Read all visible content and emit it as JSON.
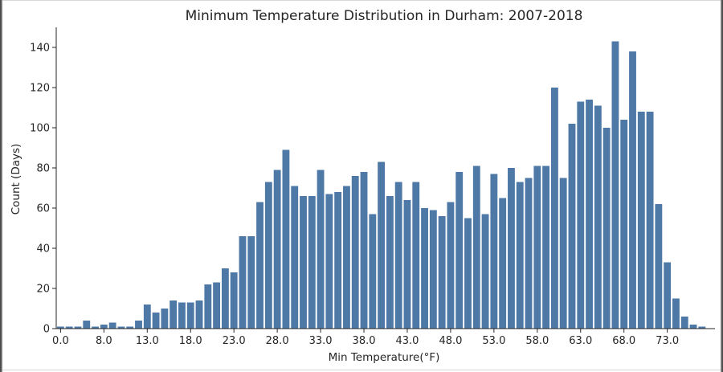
{
  "chart_data": {
    "type": "bar",
    "title": "Minimum Temperature Distribution in Durham: 2007-2018",
    "xlabel": "Min Temperature(°F)",
    "ylabel": "Count (Days)",
    "bar_color": "#4e79a7",
    "ylim": [
      0,
      150
    ],
    "yticks": [
      0,
      20,
      40,
      60,
      80,
      100,
      120,
      140
    ],
    "xtick_labels": [
      "0.0",
      "8.0",
      "13.0",
      "18.0",
      "23.0",
      "28.0",
      "33.0",
      "38.0",
      "43.0",
      "48.0",
      "53.0",
      "58.0",
      "63.0",
      "68.0",
      "73.0"
    ],
    "xtick_positions": [
      0,
      5,
      10,
      15,
      20,
      25,
      30,
      35,
      40,
      45,
      50,
      55,
      60,
      65,
      70
    ],
    "categories": [
      0,
      1,
      2,
      3,
      4,
      5,
      6,
      7,
      8,
      9,
      10,
      11,
      12,
      13,
      14,
      15,
      16,
      17,
      18,
      19,
      20,
      21,
      22,
      23,
      24,
      25,
      26,
      27,
      28,
      29,
      30,
      31,
      32,
      33,
      34,
      35,
      36,
      37,
      38,
      39,
      40,
      41,
      42,
      43,
      44,
      45,
      46,
      47,
      48,
      49,
      50,
      51,
      52,
      53,
      54,
      55,
      56,
      57,
      58,
      59,
      60,
      61,
      62,
      63,
      64,
      65,
      66,
      67,
      68,
      69,
      70,
      71,
      72,
      73,
      74,
      75
    ],
    "values": [
      1,
      1,
      1,
      4,
      1,
      2,
      3,
      1,
      1,
      4,
      12,
      8,
      10,
      14,
      13,
      13,
      14,
      22,
      23,
      30,
      28,
      46,
      46,
      63,
      73,
      79,
      89,
      71,
      66,
      66,
      79,
      67,
      68,
      71,
      76,
      78,
      57,
      83,
      66,
      73,
      64,
      73,
      60,
      59,
      56,
      63,
      78,
      55,
      81,
      57,
      77,
      65,
      80,
      73,
      75,
      81,
      81,
      120,
      75,
      102,
      113,
      114,
      111,
      100,
      143,
      104,
      138,
      108,
      108,
      62,
      33,
      15,
      6,
      2,
      1,
      0
    ]
  }
}
